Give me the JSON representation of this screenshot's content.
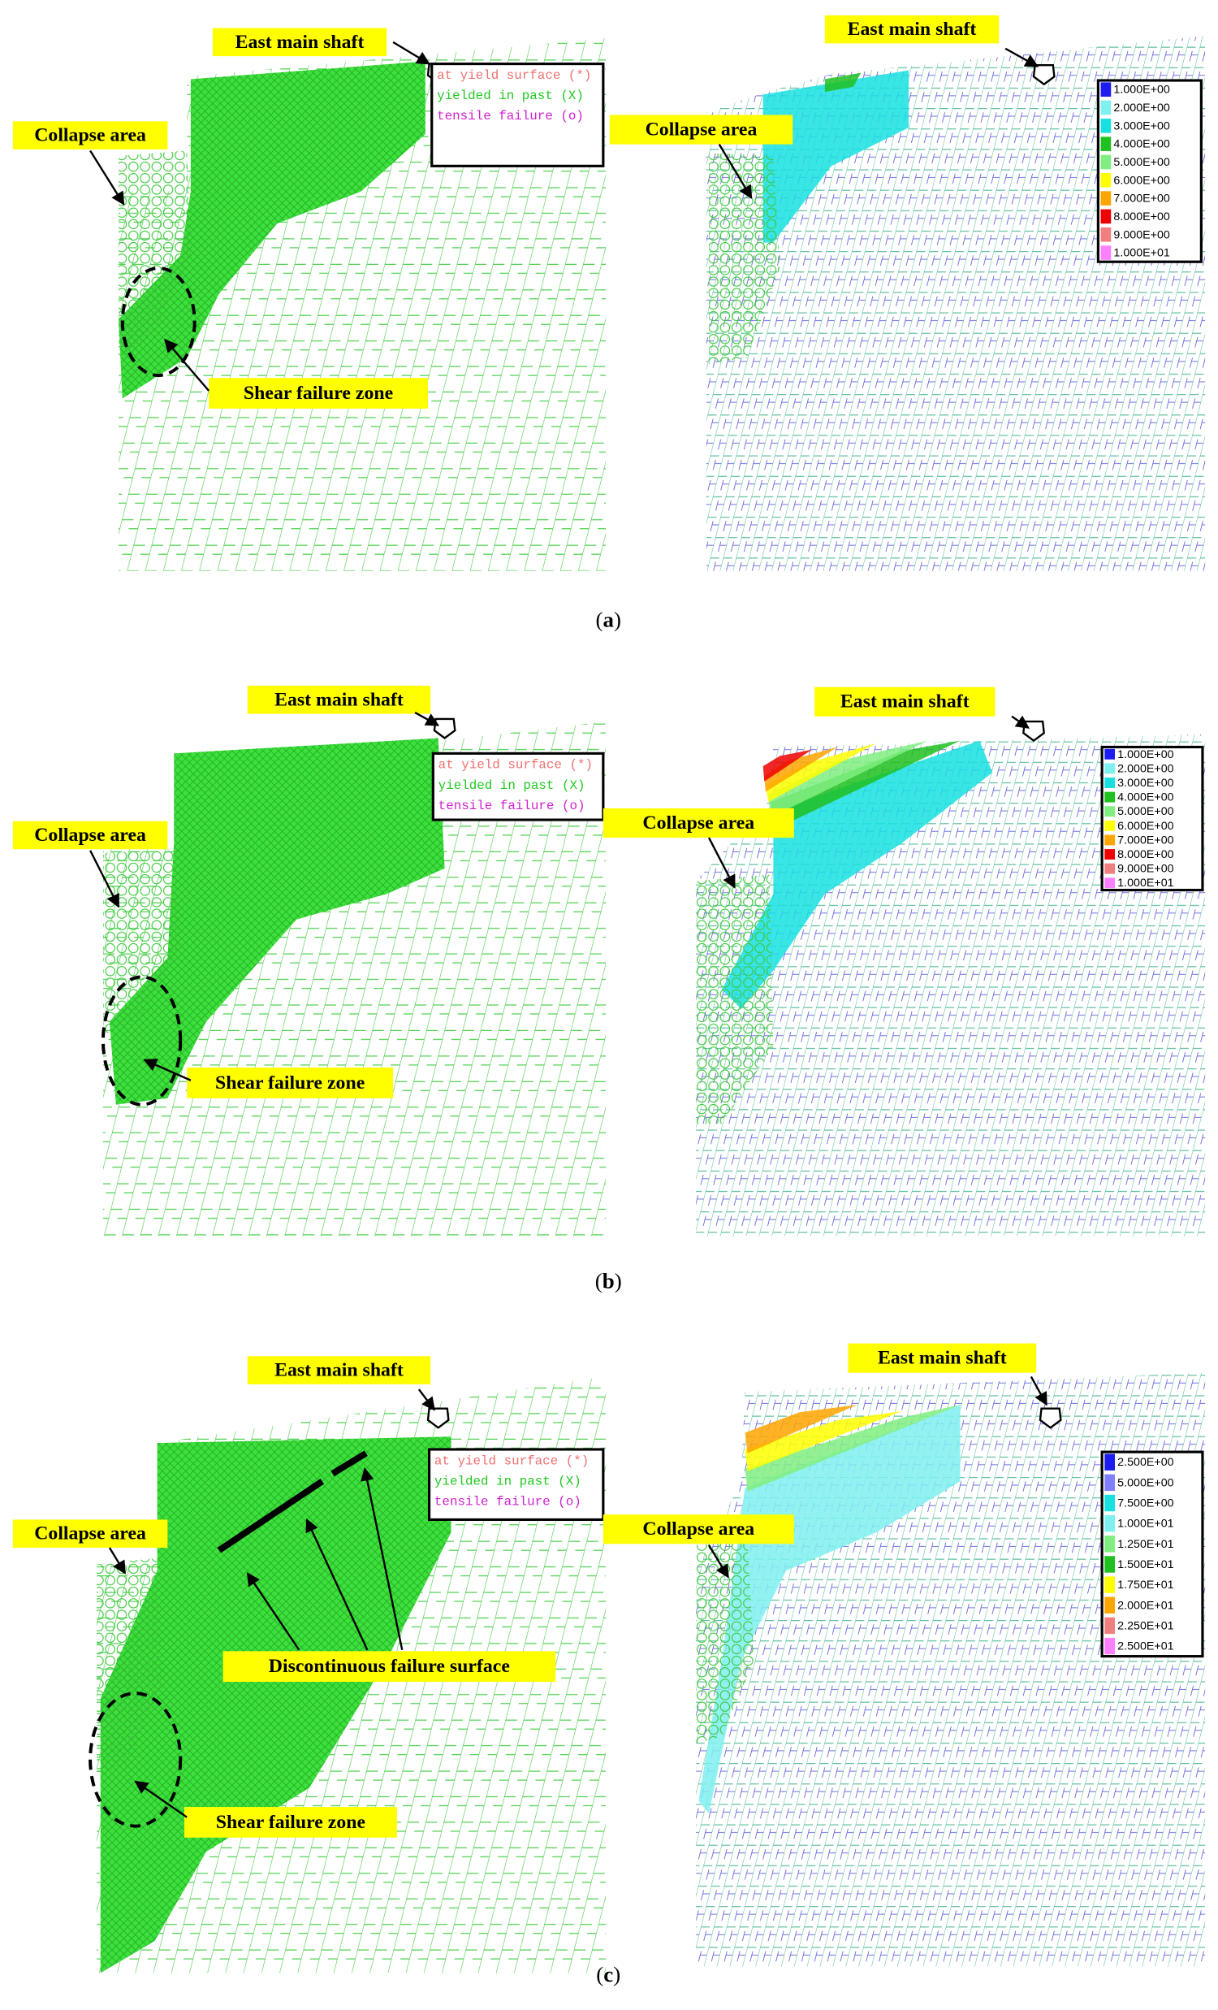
{
  "panels": [
    {
      "caption": [
        "(",
        "a",
        ")"
      ],
      "left": {
        "shaft_label": "East main shaft",
        "collapse_label": "Collapse area",
        "shear_label": "Shear failure zone",
        "legend": [
          {
            "text": "at yield surface (*)",
            "color": "#f07070"
          },
          {
            "text": "yielded in past   (X)",
            "color": "#22c822"
          },
          {
            "text": "tensile failure  (o)",
            "color": "#d020d0"
          }
        ]
      },
      "right": {
        "shaft_label": "East main shaft",
        "collapse_label": "Collapse area",
        "legend": [
          {
            "label": "1.000E+00",
            "color": "#1c1cf0"
          },
          {
            "label": "2.000E+00",
            "color": "#7ff0f0"
          },
          {
            "label": "3.000E+00",
            "color": "#18e0e0"
          },
          {
            "label": "4.000E+00",
            "color": "#20c020"
          },
          {
            "label": "5.000E+00",
            "color": "#80ee80"
          },
          {
            "label": "6.000E+00",
            "color": "#ffff00"
          },
          {
            "label": "7.000E+00",
            "color": "#ffa500"
          },
          {
            "label": "8.000E+00",
            "color": "#ee0000"
          },
          {
            "label": "9.000E+00",
            "color": "#f08080"
          },
          {
            "label": "1.000E+01",
            "color": "#ff80ff"
          }
        ]
      }
    },
    {
      "caption": [
        "(",
        "b",
        ")"
      ],
      "left": {
        "shaft_label": "East main shaft",
        "collapse_label": "Collapse area",
        "shear_label": "Shear failure zone",
        "legend": [
          {
            "text": "at yield surface (*)",
            "color": "#f07070"
          },
          {
            "text": "yielded in past   (X)",
            "color": "#22c822"
          },
          {
            "text": "tensile failure  (o)",
            "color": "#d020d0"
          }
        ]
      },
      "right": {
        "shaft_label": "East main shaft",
        "collapse_label": "Collapse area",
        "legend": [
          {
            "label": "1.000E+00",
            "color": "#1c1cf0"
          },
          {
            "label": "2.000E+00",
            "color": "#7ff0f0"
          },
          {
            "label": "3.000E+00",
            "color": "#18e0e0"
          },
          {
            "label": "4.000E+00",
            "color": "#20c020"
          },
          {
            "label": "5.000E+00",
            "color": "#80ee80"
          },
          {
            "label": "6.000E+00",
            "color": "#ffff00"
          },
          {
            "label": "7.000E+00",
            "color": "#ffa500"
          },
          {
            "label": "8.000E+00",
            "color": "#ee0000"
          },
          {
            "label": "9.000E+00",
            "color": "#f08080"
          },
          {
            "label": "1.000E+01",
            "color": "#ff80ff"
          }
        ]
      }
    },
    {
      "caption": [
        "(",
        "c",
        ")"
      ],
      "left": {
        "shaft_label": "East main shaft",
        "collapse_label": "Collapse area",
        "shear_label": "Shear failure zone",
        "surface_label": "Discontinuous failure surface",
        "legend": [
          {
            "text": "at yield surface (*)",
            "color": "#f07070"
          },
          {
            "text": "yielded in past   (X)",
            "color": "#22c822"
          },
          {
            "text": "tensile failure  (o)",
            "color": "#d020d0"
          }
        ]
      },
      "right": {
        "shaft_label": "East main shaft",
        "collapse_label": "Collapse area",
        "legend": [
          {
            "label": "2.500E+00",
            "color": "#1c1cf0"
          },
          {
            "label": "5.000E+00",
            "color": "#8080ff"
          },
          {
            "label": "7.500E+00",
            "color": "#18e0e0"
          },
          {
            "label": "1.000E+01",
            "color": "#7ff0f0"
          },
          {
            "label": "1.250E+01",
            "color": "#80ee80"
          },
          {
            "label": "1.500E+01",
            "color": "#20c020"
          },
          {
            "label": "1.750E+01",
            "color": "#ffff00"
          },
          {
            "label": "2.000E+01",
            "color": "#ffa500"
          },
          {
            "label": "2.250E+01",
            "color": "#f08080"
          },
          {
            "label": "2.500E+01",
            "color": "#ff80ff"
          }
        ]
      }
    }
  ]
}
